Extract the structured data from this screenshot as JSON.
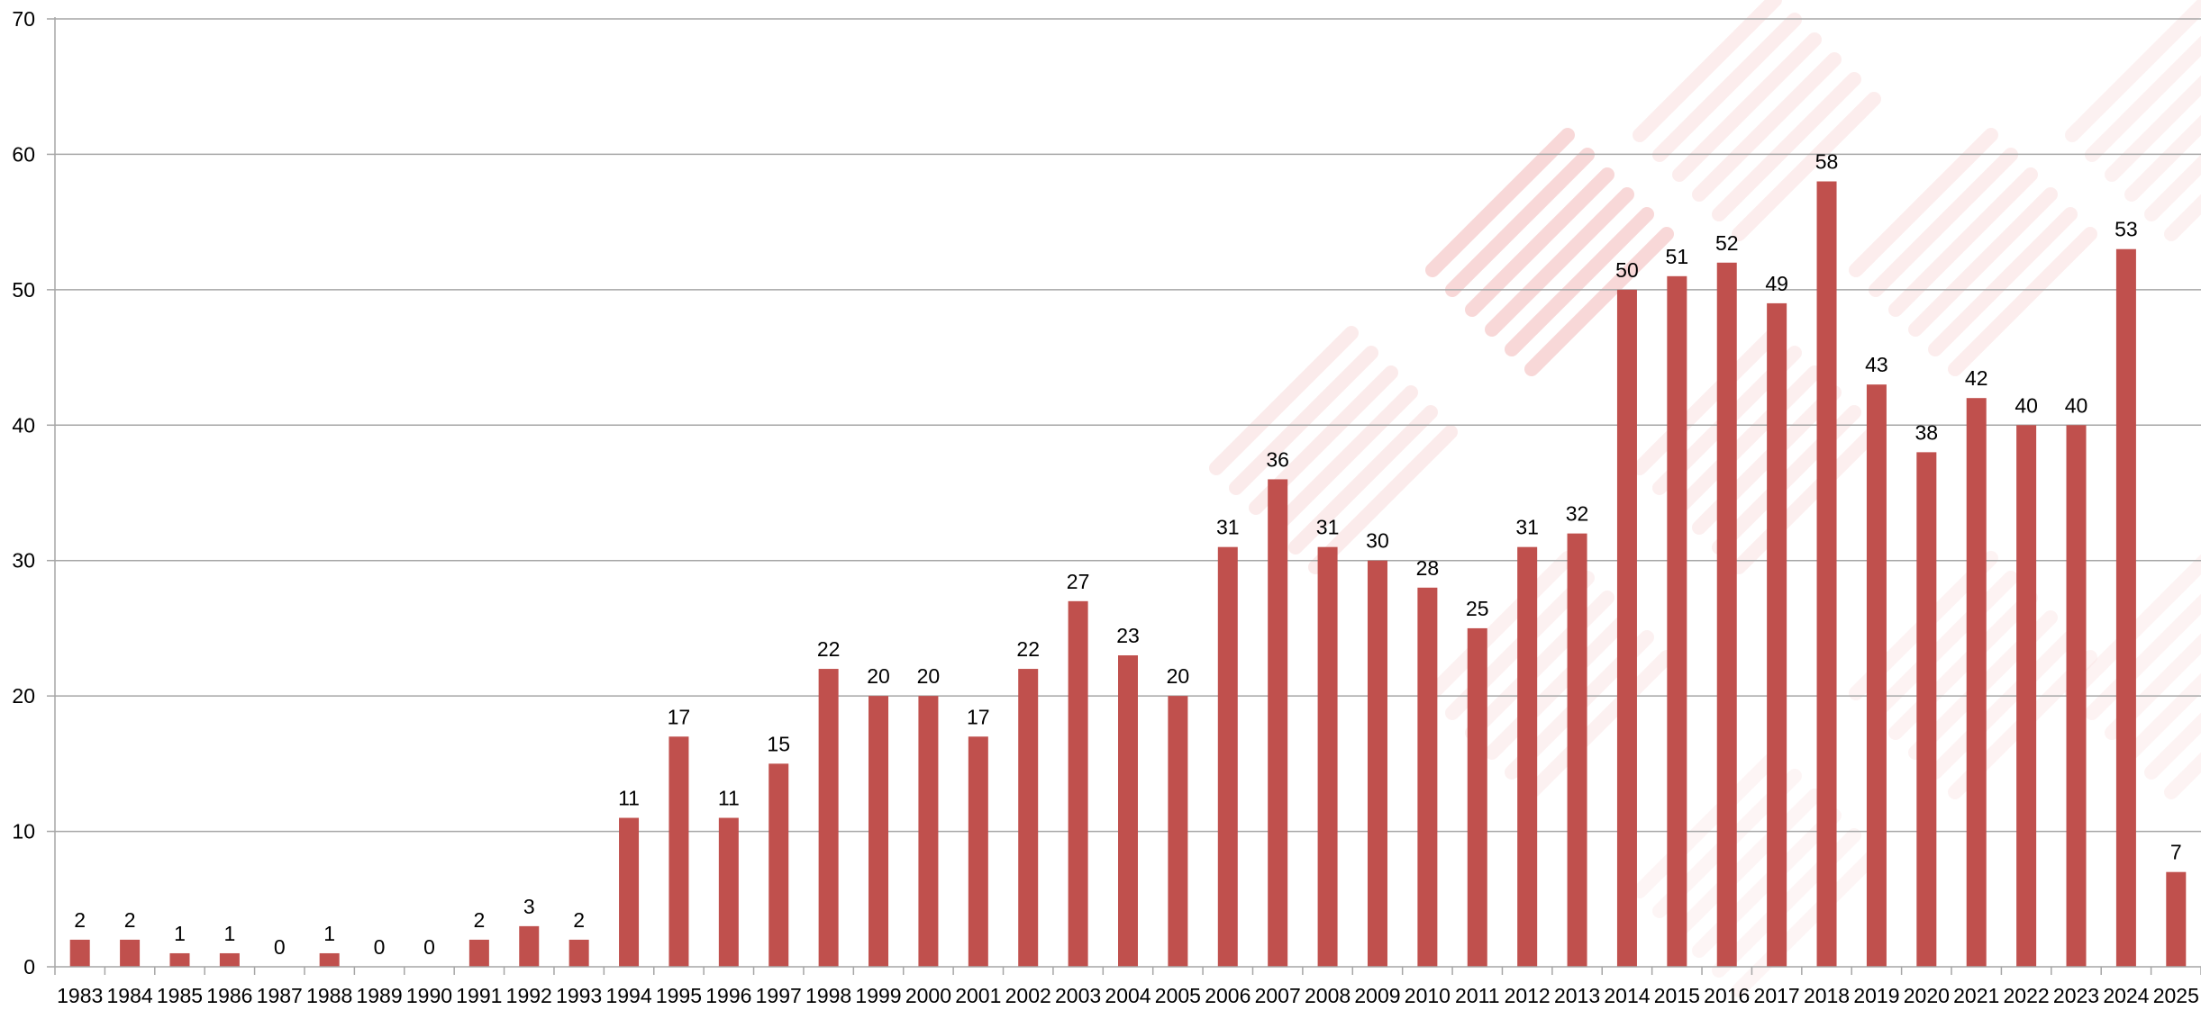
{
  "chart_data": {
    "type": "bar",
    "title": "",
    "xlabel": "",
    "ylabel": "",
    "categories": [
      "1983",
      "1984",
      "1985",
      "1986",
      "1987",
      "1988",
      "1989",
      "1990",
      "1991",
      "1992",
      "1993",
      "1994",
      "1995",
      "1996",
      "1997",
      "1998",
      "1999",
      "2000",
      "2001",
      "2002",
      "2003",
      "2004",
      "2005",
      "2006",
      "2007",
      "2008",
      "2009",
      "2010",
      "2011",
      "2012",
      "2013",
      "2014",
      "2015",
      "2016",
      "2017",
      "2018",
      "2019",
      "2020",
      "2021",
      "2022",
      "2023",
      "2024",
      "2025"
    ],
    "values": [
      2,
      2,
      1,
      1,
      0,
      1,
      0,
      0,
      2,
      3,
      2,
      11,
      17,
      11,
      15,
      22,
      20,
      20,
      17,
      22,
      27,
      23,
      20,
      31,
      36,
      31,
      30,
      28,
      25,
      31,
      32,
      50,
      51,
      52,
      49,
      58,
      43,
      38,
      42,
      40,
      40,
      53,
      7
    ],
    "ylim": [
      0,
      70
    ],
    "yticks": [
      0,
      10,
      20,
      30,
      40,
      50,
      60,
      70
    ],
    "grid": true,
    "legend": "none",
    "data_labels": true,
    "colors": {
      "bar": "#C0504D",
      "gridline": "#A6A6A6",
      "axis": "#A6A6A6",
      "watermark": "#F2B8B8"
    }
  }
}
